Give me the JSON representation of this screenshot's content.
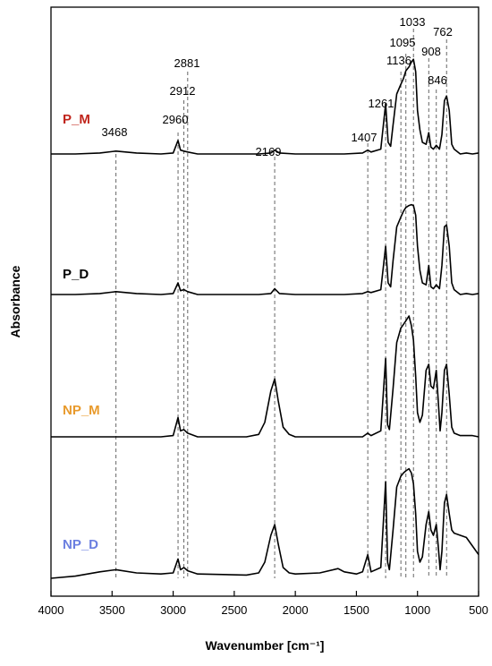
{
  "chart_data": {
    "type": "line",
    "xlabel": "Wavenumber [cm⁻¹]",
    "ylabel": "Absorbance",
    "xlim": [
      4000,
      500
    ],
    "x_reversed": true,
    "x_ticks": [
      4000,
      3500,
      3000,
      2500,
      2000,
      1500,
      1000,
      500
    ],
    "y_ticks_shown": false,
    "grid": false,
    "peaks": [
      3468,
      2960,
      2912,
      2881,
      2169,
      1407,
      1261,
      1136,
      1095,
      1033,
      908,
      846,
      762
    ],
    "series": [
      {
        "name": "P_M",
        "color": "#c0251c",
        "points": [
          [
            4000,
            0.0
          ],
          [
            3800,
            0.0
          ],
          [
            3600,
            0.01
          ],
          [
            3468,
            0.03
          ],
          [
            3300,
            0.01
          ],
          [
            3100,
            0.0
          ],
          [
            3000,
            0.01
          ],
          [
            2960,
            0.14
          ],
          [
            2940,
            0.04
          ],
          [
            2912,
            0.03
          ],
          [
            2881,
            0.02
          ],
          [
            2800,
            0.0
          ],
          [
            2300,
            0.0
          ],
          [
            2200,
            0.01
          ],
          [
            2169,
            0.04
          ],
          [
            2130,
            0.01
          ],
          [
            2000,
            0.0
          ],
          [
            1600,
            0.0
          ],
          [
            1450,
            0.01
          ],
          [
            1407,
            0.04
          ],
          [
            1380,
            0.02
          ],
          [
            1300,
            0.05
          ],
          [
            1261,
            0.52
          ],
          [
            1240,
            0.12
          ],
          [
            1220,
            0.08
          ],
          [
            1200,
            0.3
          ],
          [
            1170,
            0.62
          ],
          [
            1136,
            0.72
          ],
          [
            1115,
            0.78
          ],
          [
            1095,
            0.86
          ],
          [
            1070,
            0.9
          ],
          [
            1050,
            0.95
          ],
          [
            1033,
            0.98
          ],
          [
            1015,
            0.85
          ],
          [
            1000,
            0.45
          ],
          [
            980,
            0.25
          ],
          [
            960,
            0.12
          ],
          [
            930,
            0.1
          ],
          [
            908,
            0.22
          ],
          [
            890,
            0.07
          ],
          [
            870,
            0.05
          ],
          [
            846,
            0.09
          ],
          [
            820,
            0.05
          ],
          [
            800,
            0.2
          ],
          [
            780,
            0.55
          ],
          [
            762,
            0.6
          ],
          [
            740,
            0.45
          ],
          [
            720,
            0.1
          ],
          [
            700,
            0.05
          ],
          [
            650,
            0.0
          ],
          [
            600,
            0.01
          ],
          [
            550,
            0.0
          ],
          [
            500,
            0.01
          ]
        ]
      },
      {
        "name": "P_D",
        "color": "#000000",
        "points": [
          [
            4000,
            0.0
          ],
          [
            3800,
            0.0
          ],
          [
            3600,
            0.01
          ],
          [
            3468,
            0.03
          ],
          [
            3300,
            0.01
          ],
          [
            3100,
            0.0
          ],
          [
            3000,
            0.01
          ],
          [
            2960,
            0.12
          ],
          [
            2940,
            0.04
          ],
          [
            2912,
            0.05
          ],
          [
            2881,
            0.03
          ],
          [
            2800,
            0.0
          ],
          [
            2300,
            0.0
          ],
          [
            2200,
            0.01
          ],
          [
            2169,
            0.06
          ],
          [
            2130,
            0.01
          ],
          [
            2000,
            0.0
          ],
          [
            1600,
            0.0
          ],
          [
            1450,
            0.01
          ],
          [
            1407,
            0.03
          ],
          [
            1380,
            0.02
          ],
          [
            1300,
            0.05
          ],
          [
            1261,
            0.5
          ],
          [
            1240,
            0.12
          ],
          [
            1220,
            0.08
          ],
          [
            1200,
            0.35
          ],
          [
            1170,
            0.7
          ],
          [
            1136,
            0.8
          ],
          [
            1115,
            0.86
          ],
          [
            1095,
            0.9
          ],
          [
            1070,
            0.92
          ],
          [
            1050,
            0.93
          ],
          [
            1033,
            0.92
          ],
          [
            1015,
            0.82
          ],
          [
            1000,
            0.5
          ],
          [
            980,
            0.25
          ],
          [
            960,
            0.12
          ],
          [
            930,
            0.1
          ],
          [
            908,
            0.3
          ],
          [
            890,
            0.08
          ],
          [
            870,
            0.06
          ],
          [
            846,
            0.1
          ],
          [
            820,
            0.06
          ],
          [
            800,
            0.3
          ],
          [
            780,
            0.7
          ],
          [
            762,
            0.72
          ],
          [
            740,
            0.5
          ],
          [
            720,
            0.12
          ],
          [
            700,
            0.05
          ],
          [
            650,
            0.0
          ],
          [
            600,
            0.01
          ],
          [
            550,
            0.0
          ],
          [
            500,
            0.01
          ]
        ]
      },
      {
        "name": "NP_M",
        "color": "#e89a2c",
        "points": [
          [
            4000,
            0.0
          ],
          [
            3800,
            0.0
          ],
          [
            3600,
            0.0
          ],
          [
            3468,
            0.0
          ],
          [
            3300,
            0.0
          ],
          [
            3100,
            0.0
          ],
          [
            3000,
            0.01
          ],
          [
            2960,
            0.16
          ],
          [
            2940,
            0.05
          ],
          [
            2912,
            0.06
          ],
          [
            2881,
            0.03
          ],
          [
            2800,
            0.0
          ],
          [
            2400,
            0.0
          ],
          [
            2300,
            0.02
          ],
          [
            2250,
            0.12
          ],
          [
            2200,
            0.38
          ],
          [
            2169,
            0.48
          ],
          [
            2140,
            0.3
          ],
          [
            2100,
            0.08
          ],
          [
            2050,
            0.02
          ],
          [
            2000,
            0.0
          ],
          [
            1600,
            0.0
          ],
          [
            1450,
            0.0
          ],
          [
            1407,
            0.03
          ],
          [
            1380,
            0.01
          ],
          [
            1300,
            0.05
          ],
          [
            1261,
            0.65
          ],
          [
            1245,
            0.1
          ],
          [
            1230,
            0.06
          ],
          [
            1200,
            0.4
          ],
          [
            1170,
            0.78
          ],
          [
            1136,
            0.9
          ],
          [
            1115,
            0.93
          ],
          [
            1095,
            0.96
          ],
          [
            1070,
            1.0
          ],
          [
            1050,
            0.92
          ],
          [
            1033,
            0.8
          ],
          [
            1015,
            0.5
          ],
          [
            1000,
            0.2
          ],
          [
            980,
            0.12
          ],
          [
            960,
            0.18
          ],
          [
            930,
            0.55
          ],
          [
            908,
            0.6
          ],
          [
            890,
            0.42
          ],
          [
            870,
            0.4
          ],
          [
            846,
            0.55
          ],
          [
            830,
            0.3
          ],
          [
            815,
            0.05
          ],
          [
            800,
            0.2
          ],
          [
            780,
            0.55
          ],
          [
            762,
            0.6
          ],
          [
            740,
            0.35
          ],
          [
            720,
            0.08
          ],
          [
            700,
            0.03
          ],
          [
            650,
            0.01
          ],
          [
            600,
            0.01
          ],
          [
            550,
            0.01
          ],
          [
            500,
            0.0
          ]
        ]
      },
      {
        "name": "NP_D",
        "color": "#6b7fe0",
        "points": [
          [
            4000,
            0.0
          ],
          [
            3800,
            0.02
          ],
          [
            3600,
            0.06
          ],
          [
            3468,
            0.08
          ],
          [
            3300,
            0.05
          ],
          [
            3100,
            0.04
          ],
          [
            3000,
            0.05
          ],
          [
            2960,
            0.18
          ],
          [
            2940,
            0.08
          ],
          [
            2912,
            0.1
          ],
          [
            2881,
            0.07
          ],
          [
            2800,
            0.04
          ],
          [
            2400,
            0.03
          ],
          [
            2300,
            0.05
          ],
          [
            2250,
            0.15
          ],
          [
            2200,
            0.4
          ],
          [
            2169,
            0.5
          ],
          [
            2140,
            0.32
          ],
          [
            2100,
            0.1
          ],
          [
            2050,
            0.05
          ],
          [
            2000,
            0.04
          ],
          [
            1800,
            0.05
          ],
          [
            1650,
            0.09
          ],
          [
            1600,
            0.06
          ],
          [
            1500,
            0.04
          ],
          [
            1450,
            0.06
          ],
          [
            1407,
            0.22
          ],
          [
            1380,
            0.06
          ],
          [
            1300,
            0.1
          ],
          [
            1261,
            0.9
          ],
          [
            1245,
            0.15
          ],
          [
            1230,
            0.08
          ],
          [
            1200,
            0.45
          ],
          [
            1170,
            0.85
          ],
          [
            1136,
            0.95
          ],
          [
            1115,
            0.98
          ],
          [
            1095,
            1.0
          ],
          [
            1070,
            1.02
          ],
          [
            1050,
            0.98
          ],
          [
            1033,
            0.88
          ],
          [
            1015,
            0.6
          ],
          [
            1000,
            0.25
          ],
          [
            980,
            0.15
          ],
          [
            960,
            0.2
          ],
          [
            930,
            0.5
          ],
          [
            908,
            0.62
          ],
          [
            890,
            0.45
          ],
          [
            870,
            0.4
          ],
          [
            846,
            0.5
          ],
          [
            830,
            0.3
          ],
          [
            815,
            0.08
          ],
          [
            800,
            0.25
          ],
          [
            780,
            0.7
          ],
          [
            762,
            0.78
          ],
          [
            740,
            0.6
          ],
          [
            720,
            0.45
          ],
          [
            700,
            0.42
          ],
          [
            650,
            0.4
          ],
          [
            600,
            0.38
          ],
          [
            550,
            0.3
          ],
          [
            500,
            0.22
          ]
        ]
      }
    ]
  }
}
